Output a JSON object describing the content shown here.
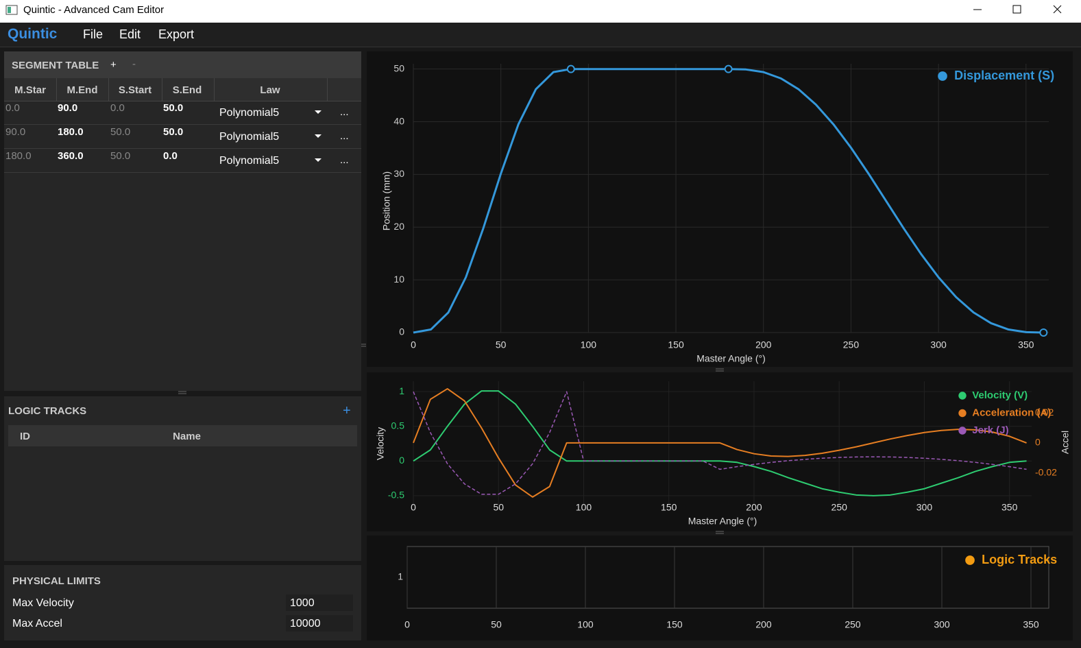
{
  "window": {
    "title": "Quintic - Advanced Cam Editor"
  },
  "menu": {
    "brand": "Quintic",
    "items": [
      "File",
      "Edit",
      "Export"
    ]
  },
  "segment_table": {
    "title": "SEGMENT TABLE",
    "add": "+",
    "remove": "-",
    "columns": [
      "M.Star",
      "M.End",
      "S.Start",
      "S.End",
      "Law"
    ],
    "rows": [
      [
        "0.0",
        "90.0",
        "0.0",
        "50.0",
        "Polynomial5",
        "..."
      ],
      [
        "90.0",
        "180.0",
        "50.0",
        "50.0",
        "Polynomial5",
        "..."
      ],
      [
        "180.0",
        "360.0",
        "50.0",
        "0.0",
        "Polynomial5",
        "..."
      ]
    ]
  },
  "logic_tracks": {
    "title": "LOGIC TRACKS",
    "add": "+",
    "columns": [
      "ID",
      "Name"
    ]
  },
  "physical_limits": {
    "title": "PHYSICAL LIMITS",
    "fields": [
      {
        "label": "Max Velocity",
        "value": "1000"
      },
      {
        "label": "Max Accel",
        "value": "10000"
      }
    ]
  },
  "chart_data": [
    {
      "type": "line",
      "x_label": "Master Angle (°)",
      "y_label": "Position (mm)",
      "x": [
        0,
        10,
        20,
        30,
        40,
        50,
        60,
        70,
        80,
        90,
        100,
        110,
        120,
        130,
        140,
        150,
        160,
        170,
        180,
        190,
        200,
        210,
        220,
        230,
        240,
        250,
        260,
        270,
        280,
        290,
        300,
        310,
        320,
        330,
        340,
        350,
        360
      ],
      "series": [
        {
          "name": "Displacement (S)",
          "color": "#3498db",
          "values": [
            0,
            0.58,
            3.82,
            10.49,
            19.83,
            30.17,
            39.51,
            46.18,
            49.42,
            50,
            50,
            50,
            50,
            50,
            50,
            50,
            50,
            50,
            50,
            49.92,
            49.42,
            48.22,
            46.18,
            43.25,
            39.51,
            35.08,
            30.17,
            25,
            19.83,
            14.92,
            10.49,
            6.75,
            3.82,
            1.78,
            0.58,
            0.08,
            0
          ]
        }
      ],
      "control_points": {
        "x": [
          90,
          180,
          360
        ],
        "y": [
          50,
          50,
          0
        ]
      },
      "xlim": [
        0,
        363
      ],
      "ylim": [
        0,
        51
      ],
      "xticks": [
        0,
        50,
        100,
        150,
        200,
        250,
        300,
        350
      ],
      "yticks": [
        0,
        10,
        20,
        30,
        40,
        50
      ],
      "grid": true,
      "legend": "upper right"
    },
    {
      "type": "line",
      "x_label": "Master Angle (°)",
      "y_label": "Velocity",
      "y2_label": "Accel",
      "x": [
        0,
        10,
        20,
        30,
        40,
        50,
        60,
        70,
        80,
        90,
        100,
        110,
        120,
        130,
        140,
        150,
        160,
        170,
        180,
        190,
        200,
        210,
        220,
        230,
        240,
        250,
        260,
        270,
        280,
        290,
        300,
        310,
        320,
        330,
        340,
        350,
        360
      ],
      "series": [
        {
          "name": "Velocity (V)",
          "color": "#2ecc71",
          "values": [
            0,
            0.16,
            0.5,
            0.82,
            1.01,
            1.01,
            0.82,
            0.5,
            0.16,
            0,
            0,
            0,
            0,
            0,
            0,
            0,
            0,
            0,
            0,
            -0.02,
            -0.08,
            -0.15,
            -0.24,
            -0.32,
            -0.4,
            -0.45,
            -0.49,
            -0.5,
            -0.49,
            -0.45,
            -0.4,
            -0.32,
            -0.24,
            -0.15,
            -0.08,
            -0.02,
            0
          ]
        },
        {
          "name": "Acceleration (A)",
          "color": "#e67e22",
          "axis": "y2",
          "values": [
            0,
            0.029,
            0.036,
            0.028,
            0.01,
            -0.01,
            -0.028,
            -0.036,
            -0.029,
            0,
            0,
            0,
            0,
            0,
            0,
            0,
            0,
            0,
            0,
            -0.0044,
            -0.0072,
            -0.0087,
            -0.009,
            -0.0083,
            -0.0069,
            -0.0049,
            -0.0026,
            0,
            0.0026,
            0.0049,
            0.0069,
            0.0083,
            0.009,
            0.0087,
            0.0072,
            0.0044,
            0
          ]
        },
        {
          "name": "Jerk (J)",
          "color": "#9b59b6",
          "style": "dashed",
          "values": [
            1,
            0.41,
            -0.04,
            -0.33,
            -0.48,
            -0.48,
            -0.33,
            -0.04,
            0.41,
            1,
            0,
            0,
            0,
            0,
            0,
            0,
            0,
            0,
            -0.12,
            -0.082,
            -0.049,
            -0.02,
            0.004,
            0.024,
            0.04,
            0.051,
            0.058,
            0.06,
            0.058,
            0.051,
            0.04,
            0.024,
            0.004,
            -0.02,
            -0.049,
            -0.082,
            -0.12
          ]
        }
      ],
      "xlim": [
        0,
        363
      ],
      "ylim": [
        -0.65,
        1.15
      ],
      "y2lim": [
        -0.042,
        0.041
      ],
      "xticks": [
        0,
        50,
        100,
        150,
        200,
        250,
        300,
        350
      ],
      "yticks": [
        -0.5,
        0,
        0.5,
        1
      ],
      "y2ticks": [
        -0.02,
        0,
        0.02
      ],
      "grid": true,
      "legend": "upper right"
    },
    {
      "type": "line",
      "x": [],
      "series": [
        {
          "name": "Logic Tracks",
          "color": "#f39c12",
          "values": []
        }
      ],
      "xlim": [
        0,
        360
      ],
      "ylim": [
        0,
        2
      ],
      "xticks": [
        0,
        50,
        100,
        150,
        200,
        250,
        300,
        350
      ],
      "yticks": [
        1
      ],
      "grid": "x",
      "legend": "upper right"
    }
  ]
}
